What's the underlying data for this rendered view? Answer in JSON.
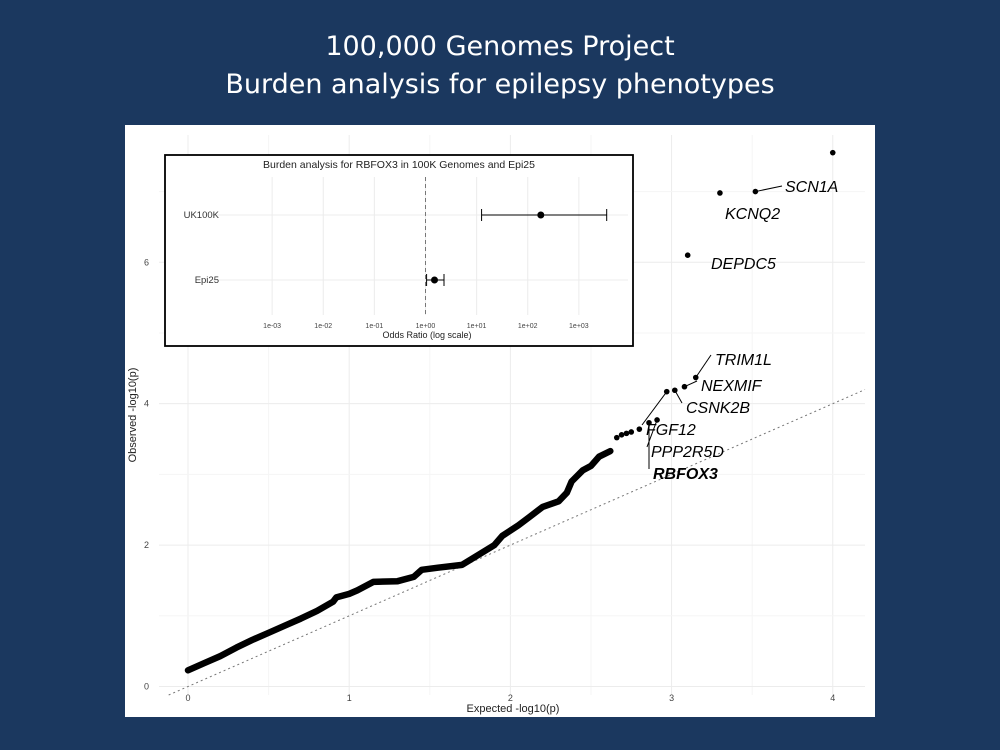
{
  "slide": {
    "title_line1": "100,000 Genomes Project",
    "title_line2": "Burden analysis for epilepsy phenotypes",
    "background_color": "#1b385f"
  },
  "chart_data": [
    {
      "type": "scatter",
      "subtype": "qq-plot",
      "xlabel": "Expected -log10(p)",
      "ylabel": "Observed -log10(p)",
      "xlim": [
        -0.18,
        4.2
      ],
      "ylim": [
        -0.12,
        7.8
      ],
      "x_ticks": [
        0,
        1,
        2,
        3,
        4
      ],
      "y_ticks": [
        0,
        2,
        4,
        6
      ],
      "grid": true,
      "reference_line": "y = x (dotted)",
      "bulk_curve": [
        [
          0.0,
          0.23
        ],
        [
          0.1,
          0.33
        ],
        [
          0.2,
          0.43
        ],
        [
          0.3,
          0.55
        ],
        [
          0.4,
          0.66
        ],
        [
          0.5,
          0.76
        ],
        [
          0.6,
          0.86
        ],
        [
          0.7,
          0.96
        ],
        [
          0.8,
          1.07
        ],
        [
          0.9,
          1.2
        ],
        [
          0.92,
          1.26
        ],
        [
          1.0,
          1.31
        ],
        [
          1.05,
          1.36
        ],
        [
          1.15,
          1.48
        ],
        [
          1.3,
          1.49
        ],
        [
          1.4,
          1.55
        ],
        [
          1.45,
          1.65
        ],
        [
          1.55,
          1.68
        ],
        [
          1.7,
          1.72
        ],
        [
          1.8,
          1.86
        ],
        [
          1.9,
          2.0
        ],
        [
          1.95,
          2.13
        ],
        [
          2.05,
          2.28
        ],
        [
          2.12,
          2.4
        ],
        [
          2.2,
          2.54
        ],
        [
          2.3,
          2.62
        ],
        [
          2.35,
          2.74
        ],
        [
          2.38,
          2.9
        ],
        [
          2.45,
          3.06
        ],
        [
          2.5,
          3.12
        ],
        [
          2.55,
          3.25
        ],
        [
          2.62,
          3.33
        ]
      ],
      "points": [
        {
          "x": 2.66,
          "y": 3.52
        },
        {
          "x": 2.69,
          "y": 3.56
        },
        {
          "x": 2.72,
          "y": 3.58
        },
        {
          "x": 2.75,
          "y": 3.6
        },
        {
          "x": 2.8,
          "y": 3.64
        },
        {
          "gene": "RBFOX3",
          "x": 2.86,
          "y": 3.73,
          "bold": true
        },
        {
          "gene": "PPP2R5D",
          "x": 2.91,
          "y": 3.77
        },
        {
          "gene": "FGF12",
          "x": 2.97,
          "y": 4.17
        },
        {
          "gene": "CSNK2B",
          "x": 3.02,
          "y": 4.19
        },
        {
          "gene": "NEXMIF",
          "x": 3.08,
          "y": 4.24
        },
        {
          "gene": "TRIM1L",
          "x": 3.15,
          "y": 4.37
        },
        {
          "gene": "DEPDC5",
          "x": 3.1,
          "y": 6.1
        },
        {
          "gene": "KCNQ2",
          "x": 3.3,
          "y": 6.98
        },
        {
          "gene": "SCN1A",
          "x": 3.52,
          "y": 7.0
        },
        {
          "x": 4.0,
          "y": 7.55
        }
      ],
      "labels": {
        "SCN1A": "SCN1A",
        "KCNQ2": "KCNQ2",
        "DEPDC5": "DEPDC5",
        "TRIM1L": "TRIM1L",
        "NEXMIF": "NEXMIF",
        "CSNK2B": "CSNK2B",
        "FGF12": "FGF12",
        "PPP2R5D": "PPP2R5D",
        "RBFOX3": "RBFOX3"
      }
    },
    {
      "type": "forest",
      "title": "Burden analysis for RBFOX3 in 100K Genomes and Epi25",
      "xlabel": "Odds Ratio (log scale)",
      "x_scale": "log10",
      "xlim": [
        0.0001,
        10000.0
      ],
      "x_tick_labels": [
        "1e-03",
        "1e-02",
        "1e-01",
        "1e+00",
        "1e+01",
        "1e+02",
        "1e+03"
      ],
      "x_tick_values": [
        0.001,
        0.01,
        0.1,
        1,
        10,
        100,
        1000
      ],
      "reference_line": 1,
      "rows": [
        {
          "label": "UK100K",
          "or": 180,
          "ci_low": 12.5,
          "ci_high": 3500
        },
        {
          "label": "Epi25",
          "or": 1.5,
          "ci_low": 1.05,
          "ci_high": 2.3
        }
      ]
    }
  ]
}
